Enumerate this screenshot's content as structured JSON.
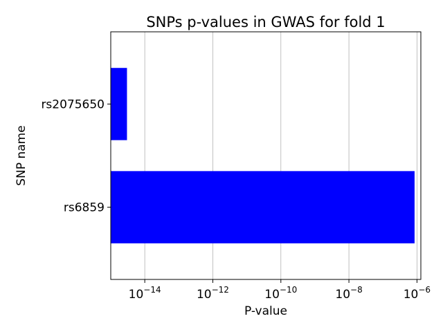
{
  "chart_data": {
    "type": "bar",
    "orientation": "horizontal",
    "title": "SNPs p-values in GWAS for fold 1",
    "xlabel": "P-value",
    "ylabel": "SNP name",
    "x_scale": "log",
    "xlim": [
      1e-15,
      1.3e-06
    ],
    "x_ticks": [
      {
        "value": 1e-14,
        "base": "10",
        "exp": "−14"
      },
      {
        "value": 1e-12,
        "base": "10",
        "exp": "−12"
      },
      {
        "value": 1e-10,
        "base": "10",
        "exp": "−10"
      },
      {
        "value": 1e-08,
        "base": "10",
        "exp": "−8"
      },
      {
        "value": 1e-06,
        "base": "10",
        "exp": "−6"
      }
    ],
    "categories": [
      "rs6859",
      "rs2075650"
    ],
    "values": [
      8.5e-07,
      3e-15
    ],
    "bar_color": "#0000ff",
    "grid_x": true,
    "grid_y": false
  }
}
